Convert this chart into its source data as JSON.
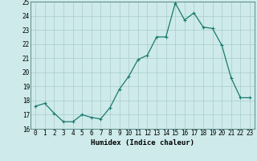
{
  "x": [
    0,
    1,
    2,
    3,
    4,
    5,
    6,
    7,
    8,
    9,
    10,
    11,
    12,
    13,
    14,
    15,
    16,
    17,
    18,
    19,
    20,
    21,
    22,
    23
  ],
  "y": [
    17.6,
    17.8,
    17.1,
    16.5,
    16.5,
    17.0,
    16.8,
    16.7,
    17.5,
    18.8,
    19.7,
    20.9,
    21.2,
    22.5,
    22.5,
    24.9,
    23.7,
    24.2,
    23.2,
    23.1,
    21.9,
    19.6,
    18.2,
    18.2
  ],
  "line_color": "#1a7a6e",
  "marker": "+",
  "marker_size": 3,
  "marker_linewidth": 0.8,
  "linewidth": 0.9,
  "xlabel": "Humidex (Indice chaleur)",
  "xlim": [
    -0.5,
    23.5
  ],
  "ylim": [
    16,
    25
  ],
  "yticks": [
    16,
    17,
    18,
    19,
    20,
    21,
    22,
    23,
    24,
    25
  ],
  "xticks": [
    0,
    1,
    2,
    3,
    4,
    5,
    6,
    7,
    8,
    9,
    10,
    11,
    12,
    13,
    14,
    15,
    16,
    17,
    18,
    19,
    20,
    21,
    22,
    23
  ],
  "bg_color": "#ceeaea",
  "grid_color": "#aacccc",
  "tick_label_fontsize": 5.5,
  "xlabel_fontsize": 6.5,
  "spine_color": "#336666"
}
